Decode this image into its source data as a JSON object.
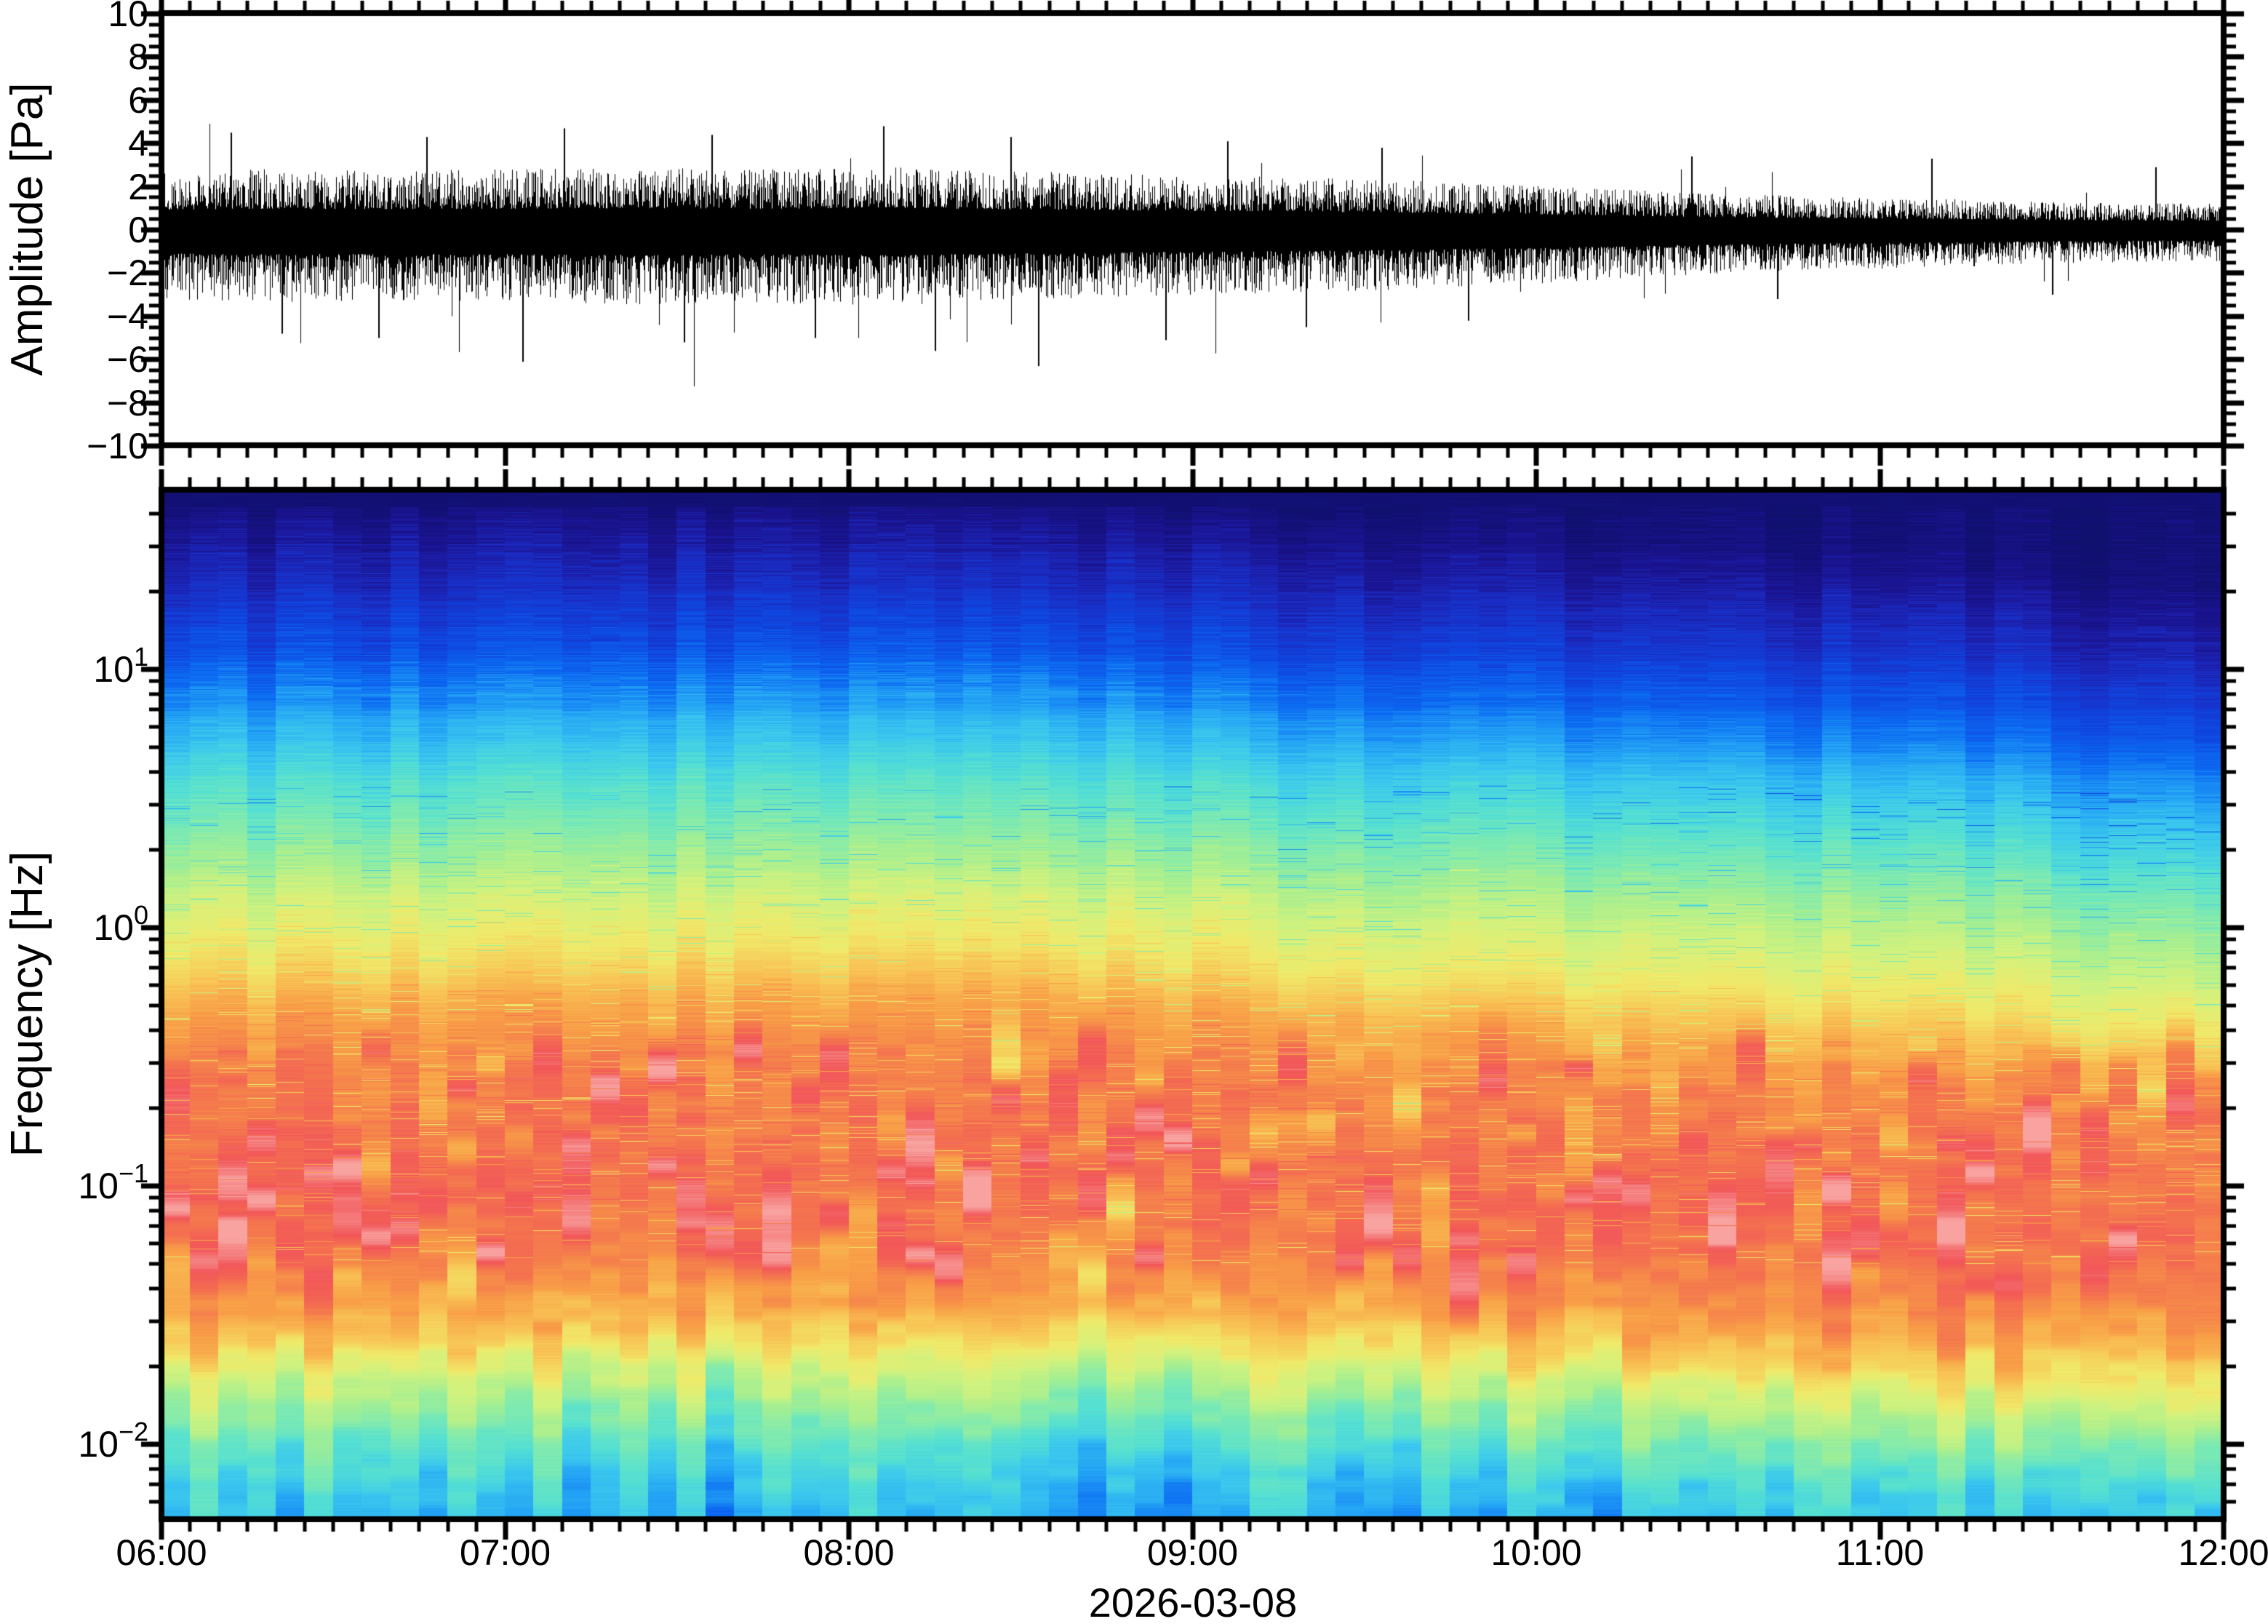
{
  "figure": {
    "date_label": "2026-03-08",
    "background": "#ffffff",
    "frame_color": "#000000"
  },
  "chart_data": [
    {
      "type": "line",
      "name": "infrasound-waveform",
      "ylabel": "Amplitude [Pa]",
      "xlabel": "",
      "ylim": [
        -10,
        10
      ],
      "ytick_step": 2,
      "ytick_minor_step": 0.5,
      "ytick_labels": [
        "10",
        "8",
        "6",
        "4",
        "2",
        "0",
        "−2",
        "−4",
        "−6",
        "−8",
        "−10"
      ],
      "ytick_values": [
        10,
        8,
        6,
        4,
        2,
        0,
        -2,
        -4,
        -6,
        -8,
        -10
      ],
      "x_range_hours": [
        6,
        12
      ],
      "xtick_labels": [
        "06:00",
        "07:00",
        "08:00",
        "09:00",
        "10:00",
        "11:00",
        "12:00"
      ],
      "xtick_minor_minutes": 5,
      "grid": false,
      "series": [
        {
          "name": "pressure",
          "color": "#000000",
          "envelope_pa": [
            [
              6.0,
              2.35
            ],
            [
              6.3,
              2.45
            ],
            [
              6.6,
              2.4
            ],
            [
              7.0,
              2.45
            ],
            [
              7.4,
              2.5
            ],
            [
              7.8,
              2.45
            ],
            [
              8.1,
              2.55
            ],
            [
              8.4,
              2.4
            ],
            [
              8.8,
              2.25
            ],
            [
              9.2,
              2.15
            ],
            [
              9.6,
              2.0
            ],
            [
              10.0,
              1.8
            ],
            [
              10.4,
              1.55
            ],
            [
              10.8,
              1.35
            ],
            [
              11.2,
              1.25
            ],
            [
              11.6,
              1.1
            ],
            [
              12.0,
              1.05
            ]
          ],
          "notable_down_peaks": [
            [
              6.35,
              -4.8
            ],
            [
              6.63,
              -5.0
            ],
            [
              7.05,
              -6.1
            ],
            [
              7.52,
              -5.2
            ],
            [
              7.9,
              -5.0
            ],
            [
              8.25,
              -5.6
            ],
            [
              8.55,
              -6.3
            ],
            [
              8.92,
              -5.1
            ],
            [
              9.33,
              -4.5
            ],
            [
              9.8,
              -4.2
            ],
            [
              10.7,
              -3.2
            ],
            [
              11.5,
              -3.0
            ]
          ],
          "notable_up_peaks": [
            [
              6.2,
              4.5
            ],
            [
              6.77,
              4.3
            ],
            [
              7.17,
              4.7
            ],
            [
              7.6,
              4.4
            ],
            [
              8.1,
              4.8
            ],
            [
              8.47,
              4.3
            ],
            [
              9.1,
              4.1
            ],
            [
              9.55,
              3.8
            ],
            [
              10.45,
              3.4
            ],
            [
              11.15,
              3.3
            ],
            [
              11.8,
              2.9
            ]
          ],
          "max_peak_pa": 4.8,
          "min_peak_pa": -6.3
        }
      ]
    },
    {
      "type": "heatmap",
      "name": "spectrogram",
      "ylabel": "Frequency [Hz]",
      "xlabel": "2026-03-08",
      "yscale": "log",
      "ylim_hz": [
        0.005,
        50
      ],
      "ytick_labels": [
        {
          "mantissa": "10",
          "exponent": "1"
        },
        {
          "mantissa": "10",
          "exponent": "0"
        },
        {
          "mantissa": "10",
          "exponent": "−1"
        },
        {
          "mantissa": "10",
          "exponent": "−2"
        }
      ],
      "ytick_values_hz": [
        10,
        1,
        0.1,
        0.01
      ],
      "x_range_hours": [
        6,
        12
      ],
      "xtick_labels": [
        "06:00",
        "07:00",
        "08:00",
        "09:00",
        "10:00",
        "11:00",
        "12:00"
      ],
      "xtick_minor_minutes": 5,
      "time_columns": 72,
      "colormap": {
        "stops": [
          [
            0.0,
            "#10106e"
          ],
          [
            0.07,
            "#1b1390"
          ],
          [
            0.13,
            "#1b2ac0"
          ],
          [
            0.2,
            "#0f46e0"
          ],
          [
            0.27,
            "#0c6cf2"
          ],
          [
            0.33,
            "#23a2f5"
          ],
          [
            0.39,
            "#3bc8ee"
          ],
          [
            0.45,
            "#55e0d2"
          ],
          [
            0.51,
            "#7deab2"
          ],
          [
            0.57,
            "#a8ef90"
          ],
          [
            0.63,
            "#d2f27e"
          ],
          [
            0.69,
            "#f0ea6a"
          ],
          [
            0.75,
            "#f8c656"
          ],
          [
            0.81,
            "#f89e47"
          ],
          [
            0.87,
            "#f4764e"
          ],
          [
            0.93,
            "#f25659"
          ],
          [
            1.0,
            "#f8a3a0"
          ]
        ]
      },
      "power_profile_log10hz_vs_level": [
        [
          1.7,
          0.015
        ],
        [
          1.6,
          0.03
        ],
        [
          1.45,
          0.08
        ],
        [
          1.25,
          0.14
        ],
        [
          1.05,
          0.21
        ],
        [
          0.85,
          0.3
        ],
        [
          0.65,
          0.39
        ],
        [
          0.45,
          0.47
        ],
        [
          0.25,
          0.55
        ],
        [
          0.05,
          0.63
        ],
        [
          -0.15,
          0.7
        ],
        [
          -0.35,
          0.79
        ],
        [
          -0.55,
          0.84
        ],
        [
          -0.8,
          0.86
        ],
        [
          -1.05,
          0.88
        ],
        [
          -1.3,
          0.85
        ],
        [
          -1.5,
          0.79
        ],
        [
          -1.62,
          0.72
        ],
        [
          -1.75,
          0.62
        ],
        [
          -1.88,
          0.54
        ],
        [
          -2.0,
          0.47
        ],
        [
          -2.12,
          0.41
        ],
        [
          -2.29,
          0.36
        ]
      ],
      "time_shift_decades": [
        [
          6,
          0.02
        ],
        [
          7,
          0.05
        ],
        [
          8,
          0.09
        ],
        [
          8.6,
          0.08
        ],
        [
          9,
          0.03
        ],
        [
          9.5,
          -0.02
        ],
        [
          10,
          -0.07
        ],
        [
          10.5,
          -0.13
        ],
        [
          11,
          -0.15
        ],
        [
          11.5,
          -0.22
        ],
        [
          12,
          -0.3
        ]
      ]
    }
  ]
}
